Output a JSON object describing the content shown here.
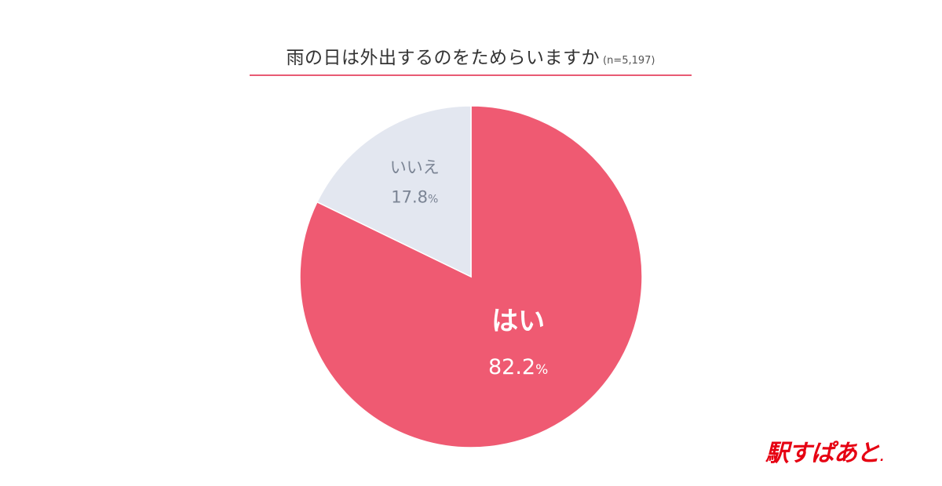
{
  "header": {
    "title": "雨の日は外出するのをためらいますか",
    "sample_size": "(n=5,197)"
  },
  "chart_data": {
    "type": "pie",
    "title": "雨の日は外出するのをためらいますか",
    "subtitle": "(n=5,197)",
    "slices": [
      {
        "label": "はい",
        "value": 82.2,
        "display": "82.2",
        "unit": "%",
        "color": "#ef5a72",
        "text_color": "#ffffff"
      },
      {
        "label": "いいえ",
        "value": 17.8,
        "display": "17.8",
        "unit": "%",
        "color": "#e3e7f0",
        "text_color": "#7b8494"
      }
    ],
    "start_angle": "12 o'clock",
    "direction": "clockwise"
  },
  "brand": {
    "logo_text": "駅すぱあと",
    "logo_dot": ".",
    "logo_color": "#e60012"
  }
}
